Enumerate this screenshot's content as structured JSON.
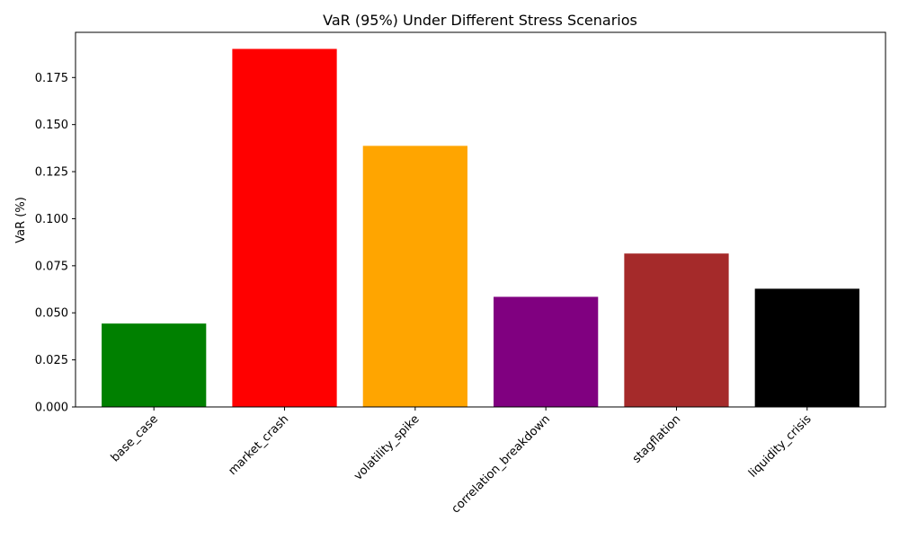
{
  "chart_data": {
    "type": "bar",
    "title": "VaR (95%) Under Different Stress Scenarios",
    "xlabel": "",
    "ylabel": "VaR (%)",
    "categories": [
      "base_case",
      "market_crash",
      "volatility_spike",
      "correlation_breakdown",
      "stagflation",
      "liquidity_crisis"
    ],
    "values": [
      0.0443,
      0.1902,
      0.1387,
      0.0585,
      0.0815,
      0.0628
    ],
    "colors": [
      "#008000",
      "#ff0000",
      "#ffa500",
      "#800080",
      "#a52a2a",
      "#000000"
    ],
    "ylim": [
      0,
      0.199
    ],
    "yticks": [
      0.0,
      0.025,
      0.05,
      0.075,
      0.1,
      0.125,
      0.15,
      0.175
    ],
    "ytick_labels": [
      "0.000",
      "0.025",
      "0.050",
      "0.075",
      "0.100",
      "0.125",
      "0.150",
      "0.175"
    ],
    "grid": false,
    "legend": "none"
  }
}
